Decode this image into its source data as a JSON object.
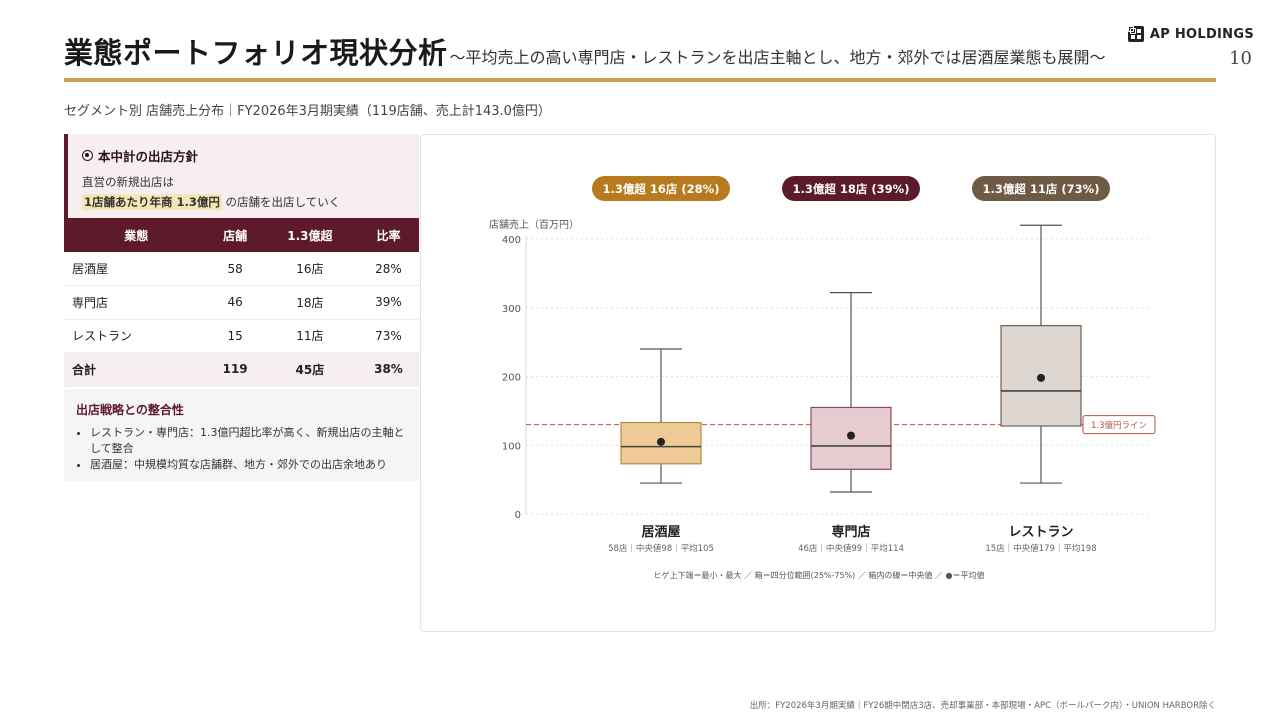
{
  "header": {
    "title": "業態ポートフォリオ現状分析",
    "subtitle": "〜平均売上の高い専門店・レストランを出店主軸とし、地方・郊外では居酒屋業態も展開〜",
    "logo_text": "AP HOLDINGS",
    "page_number": "10"
  },
  "section_label": "セグメント別 店舗売上分布｜FY2026年3月期実績（119店舗、売上計143.0億円）",
  "policy": {
    "title": "本中計の出店方針",
    "line1": "直営の新規出店は",
    "highlight": "1店舗あたり年商 1.3億円",
    "line2_rest": " の店舗を出店していく"
  },
  "table": {
    "headers": [
      "業態",
      "店舗",
      "1.3億超",
      "比率"
    ],
    "rows": [
      [
        "居酒屋",
        "58",
        "16店",
        "28%"
      ],
      [
        "専門店",
        "46",
        "18店",
        "39%"
      ],
      [
        "レストラン",
        "15",
        "11店",
        "73%"
      ]
    ],
    "total": [
      "合計",
      "119",
      "45店",
      "38%"
    ]
  },
  "alignment": {
    "title": "出店戦略との整合性",
    "bullets": [
      "レストラン・専門店：1.3億円超比率が高く、新規出店の主軸として整合",
      "居酒屋：中規模均質な店舗群、地方・郊外での出店余地あり"
    ]
  },
  "chart_data": {
    "type": "boxplot",
    "ylabel": "店舗売上（百万円）",
    "ylim": [
      0,
      400
    ],
    "yticks": [
      0,
      100,
      200,
      300,
      400
    ],
    "grid": true,
    "reference_line": {
      "value": 130,
      "label": "1.3億円ライン",
      "color": "#b5524a"
    },
    "series": [
      {
        "name": "居酒屋",
        "badge": "1.3億超 16店 (28%)",
        "sublabel": "58店｜中央値98｜平均105",
        "min": 45,
        "q1": 73,
        "median": 98,
        "q3": 133,
        "max": 240,
        "mean": 105,
        "fill": "#eecb96",
        "stroke": "#b98a3e",
        "badge_color": "#b77a1e"
      },
      {
        "name": "専門店",
        "badge": "1.3億超 18店 (39%)",
        "sublabel": "46店｜中央値99｜平均114",
        "min": 32,
        "q1": 65,
        "median": 99,
        "q3": 155,
        "max": 322,
        "mean": 114,
        "fill": "#e6cbd0",
        "stroke": "#8a4a58",
        "badge_color": "#5c1a2b"
      },
      {
        "name": "レストラン",
        "badge": "1.3億超 11店 (73%)",
        "sublabel": "15店｜中央値179｜平均198",
        "min": 45,
        "q1": 128,
        "median": 179,
        "q3": 274,
        "max": 420,
        "mean": 198,
        "fill": "#ddd6d0",
        "stroke": "#6b5e55",
        "badge_color": "#6e5a45"
      }
    ],
    "legend_note": "ヒゲ上下端＝最小・最大 ／ 箱＝四分位範囲(25%-75%) ／ 箱内の線＝中央値 ／ ●＝平均値"
  },
  "source": "出所：FY2026年3月期実績｜FY26期中閉店3店、売却事業部・本部現場・APC（ボールパーク内）・UNION HARBOR除く"
}
